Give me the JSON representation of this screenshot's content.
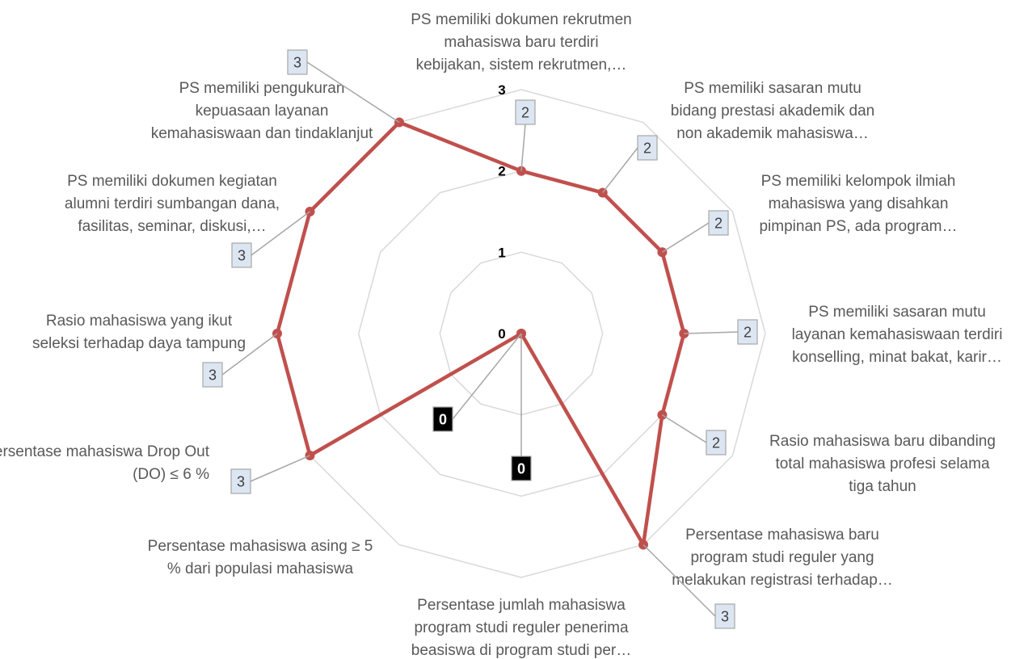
{
  "chart_data": {
    "type": "radar",
    "categories": [
      [
        "PS memiliki dokumen rekrutmen",
        "mahasiswa baru terdiri",
        "kebijakan, sistem rekrutmen,…"
      ],
      [
        "PS memiliki sasaran mutu",
        "bidang prestasi akademik dan",
        "non akademik mahasiswa…"
      ],
      [
        "PS memiliki kelompok ilmiah",
        "mahasiswa yang disahkan",
        "pimpinan PS, ada program…"
      ],
      [
        "PS memiliki sasaran mutu",
        "layanan kemahasiswaan terdiri",
        "konselling, minat bakat, karir…"
      ],
      [
        "Rasio mahasiswa baru dibanding",
        "total mahasiswa profesi selama",
        "tiga tahun"
      ],
      [
        "Persentase mahasiswa baru",
        "program studi reguler yang",
        "melakukan registrasi terhadap…"
      ],
      [
        "Persentase jumlah mahasiswa",
        "program studi  reguler penerima",
        "beasiswa di program studi per…"
      ],
      [
        "Persentase mahasiswa asing ≥ 5",
        "% dari populasi mahasiswa"
      ],
      [
        "Persentase mahasiswa Drop Out",
        "(DO) ≤ 6 %"
      ],
      [
        "Rasio mahasiswa yang ikut",
        "seleksi terhadap daya tampung"
      ],
      [
        "PS memiliki dokumen kegiatan",
        "alumni terdiri sumbangan dana,",
        "fasilitas, seminar, diskusi,…"
      ],
      [
        "PS memiliki pengukuran",
        "kepuasaan layanan",
        "kemahasiswaan dan tindaklanjut"
      ]
    ],
    "values": [
      2,
      2,
      2,
      2,
      2,
      3,
      0,
      0,
      3,
      3,
      3,
      3
    ],
    "data_labels": [
      "2",
      "2",
      "2",
      "2",
      "2",
      "3",
      "0",
      "0",
      "3",
      "3",
      "3",
      "3"
    ],
    "ticks": [
      "0",
      "1",
      "2",
      "3"
    ],
    "rmax": 3,
    "title": "",
    "series_color": "#c0504d",
    "grid_color": "#d9d9d9",
    "label_box_fill": "#dce6f2",
    "label_box_border": "#a6a6a6",
    "label_box_fill_zero": "#000000",
    "label_text_color": "#404040",
    "label_text_color_zero": "#ffffff"
  }
}
